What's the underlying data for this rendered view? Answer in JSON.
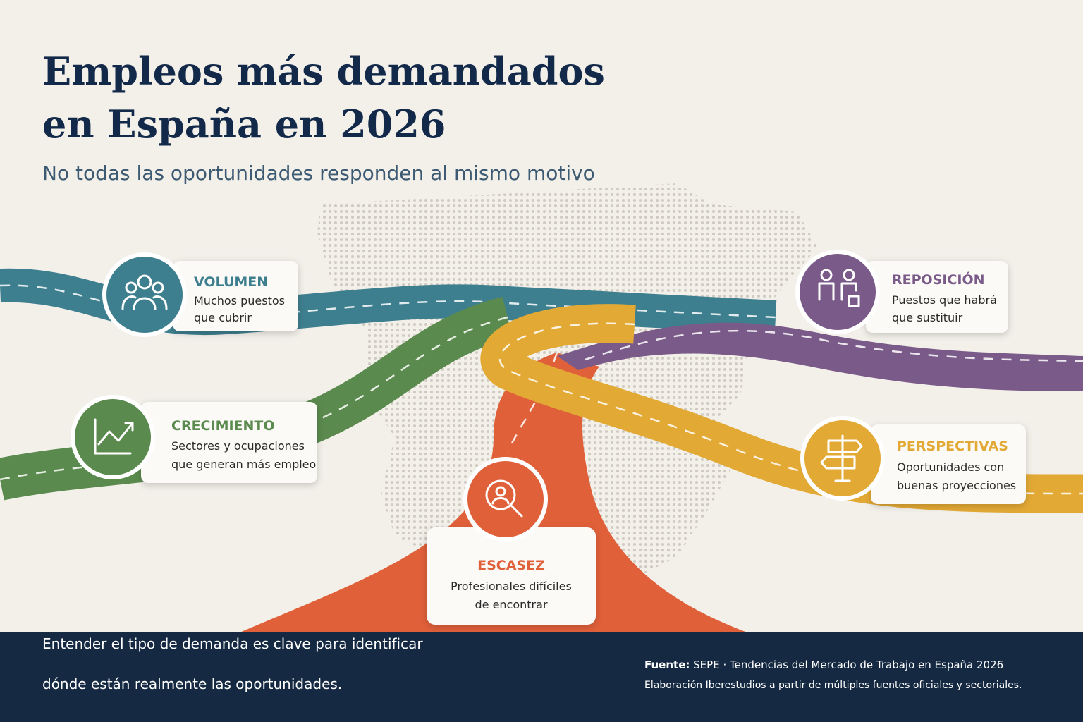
{
  "header": {
    "title_lines": [
      "Empleos más demandados",
      "en España en 2026"
    ],
    "subtitle": "No todas las oportunidades responden al mismo motivo"
  },
  "categories": [
    {
      "name": "VOLUMEN",
      "description_lines": [
        "Muchos puestos",
        "que cubrir"
      ]
    },
    {
      "name": "CRECIMIENTO",
      "description_lines": [
        "Sectores y ocupaciones",
        "que generan más empleo"
      ]
    },
    {
      "name": "ESCASEZ",
      "description_lines": [
        "Profesionales difíciles",
        "de encontrar"
      ]
    },
    {
      "name": "REPOSICIÓN",
      "description_lines": [
        "Puestos que habrá",
        "que sustituir"
      ]
    },
    {
      "name": "PERSPECTIVAS",
      "description_lines": [
        "Oportunidades con",
        "buenas proyecciones"
      ]
    }
  ],
  "footer": {
    "message_lines": [
      "Entender el tipo de demanda es clave para identificar",
      "dónde están realmente las oportunidades."
    ],
    "source_label": "Fuente:",
    "source_text": "SEPE · Tendencias del Mercado de Trabajo en España 2026",
    "credit": "Elaboración Iberestudios a partir de múltiples fuentes oficiales y sectoriales."
  }
}
